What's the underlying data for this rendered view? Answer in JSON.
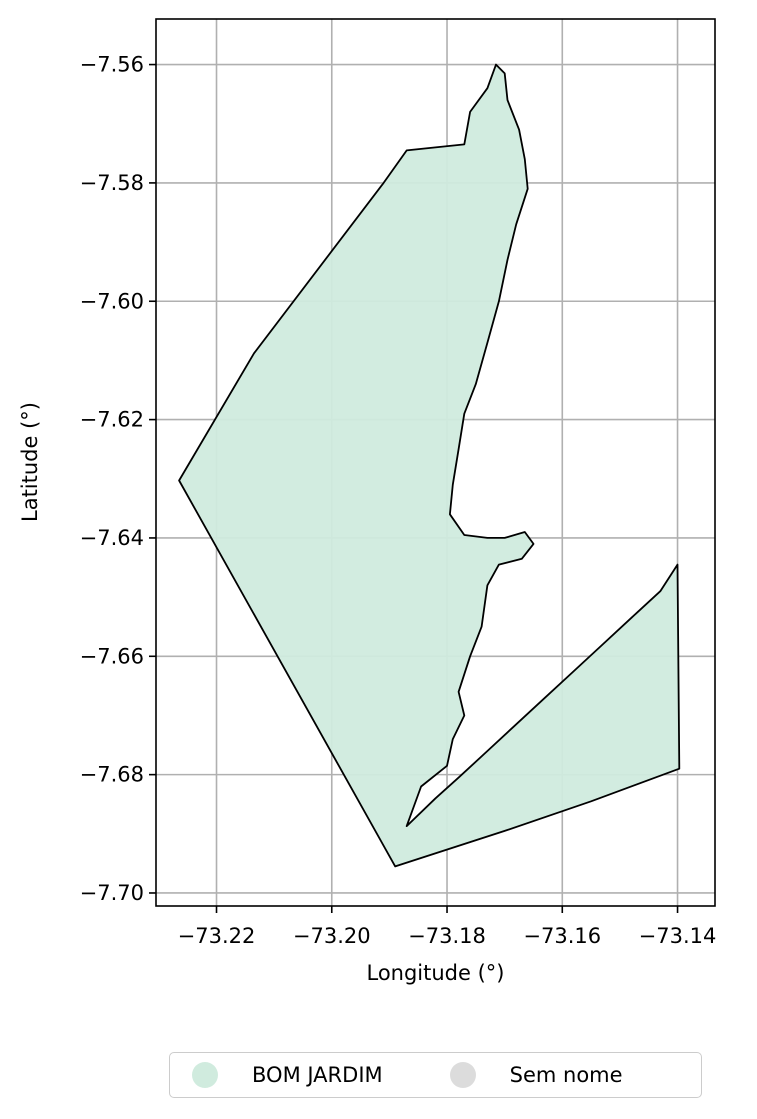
{
  "chart_data": {
    "type": "map",
    "xlabel": "Longitude (°)",
    "ylabel": "Latitude (°)",
    "xlim": [
      -73.2305,
      -73.1335
    ],
    "ylim": [
      -7.7022,
      -7.5523
    ],
    "xticks": [
      -73.22,
      -73.2,
      -73.18,
      -73.16,
      -73.14
    ],
    "xtick_labels": [
      "−73.22",
      "−73.20",
      "−73.18",
      "−73.16",
      "−73.14"
    ],
    "yticks": [
      -7.56,
      -7.58,
      -7.6,
      -7.62,
      -7.64,
      -7.66,
      -7.68,
      -7.7
    ],
    "ytick_labels": [
      "−7.56",
      "−7.58",
      "−7.60",
      "−7.62",
      "−7.64",
      "−7.66",
      "−7.68",
      "−7.70"
    ],
    "grid": true,
    "legend_placement": "bottom-center",
    "series": [
      {
        "name": "BOM JARDIM",
        "color": "#d0ebde"
      },
      {
        "name": "Sem nome",
        "color": "#dcdcdc"
      }
    ],
    "regions": [
      {
        "name": "BOM JARDIM",
        "fill": "#d0ebde",
        "stroke": "#000000",
        "coordinates": [
          [
            -73.189,
            -7.6955
          ],
          [
            -73.2265,
            -7.6303
          ],
          [
            -73.2135,
            -7.6088
          ],
          [
            -73.191,
            -7.58
          ],
          [
            -73.187,
            -7.5745
          ],
          [
            -73.182,
            -7.574
          ],
          [
            -73.177,
            -7.5735
          ],
          [
            -73.176,
            -7.568
          ],
          [
            -73.173,
            -7.564
          ],
          [
            -73.1715,
            -7.56
          ],
          [
            -73.17,
            -7.5615
          ],
          [
            -73.1695,
            -7.566
          ],
          [
            -73.1675,
            -7.571
          ],
          [
            -73.1665,
            -7.576
          ],
          [
            -73.166,
            -7.581
          ],
          [
            -73.168,
            -7.587
          ],
          [
            -73.1695,
            -7.593
          ],
          [
            -73.171,
            -7.6
          ],
          [
            -73.173,
            -7.607
          ],
          [
            -73.175,
            -7.614
          ],
          [
            -73.177,
            -7.619
          ],
          [
            -73.178,
            -7.625
          ],
          [
            -73.179,
            -7.631
          ],
          [
            -73.1795,
            -7.636
          ],
          [
            -73.177,
            -7.6395
          ],
          [
            -73.173,
            -7.64
          ],
          [
            -73.17,
            -7.64
          ],
          [
            -73.1665,
            -7.639
          ],
          [
            -73.165,
            -7.641
          ],
          [
            -73.167,
            -7.6435
          ],
          [
            -73.171,
            -7.6445
          ],
          [
            -73.173,
            -7.648
          ],
          [
            -73.174,
            -7.655
          ],
          [
            -73.176,
            -7.66
          ],
          [
            -73.178,
            -7.666
          ],
          [
            -73.177,
            -7.67
          ],
          [
            -73.179,
            -7.674
          ],
          [
            -73.18,
            -7.6785
          ],
          [
            -73.1845,
            -7.682
          ],
          [
            -73.187,
            -7.6887
          ],
          [
            -73.182,
            -7.684
          ],
          [
            -73.178,
            -7.6805
          ],
          [
            -73.173,
            -7.676
          ],
          [
            -73.168,
            -7.6715
          ],
          [
            -73.163,
            -7.667
          ],
          [
            -73.158,
            -7.6625
          ],
          [
            -73.153,
            -7.658
          ],
          [
            -73.148,
            -7.6535
          ],
          [
            -73.143,
            -7.649
          ],
          [
            -73.14,
            -7.6445
          ],
          [
            -73.1397,
            -7.679
          ],
          [
            -73.155,
            -7.6845
          ],
          [
            -73.17,
            -7.6895
          ],
          [
            -73.189,
            -7.6955
          ]
        ]
      }
    ]
  },
  "legend": {
    "items": [
      {
        "label": "BOM JARDIM",
        "color": "#d0ebde"
      },
      {
        "label": "Sem nome",
        "color": "#dcdcdc"
      }
    ]
  }
}
